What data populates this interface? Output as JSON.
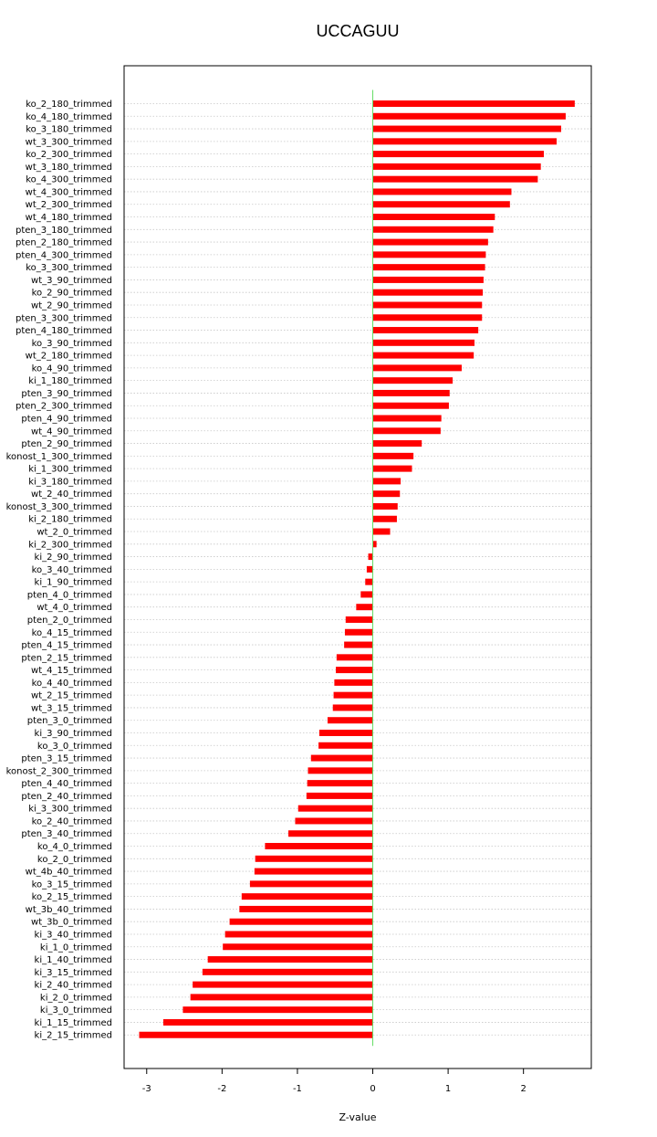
{
  "chart_data": {
    "type": "bar",
    "orientation": "horizontal",
    "title": "UCCAGUU",
    "xlabel": "Z-value",
    "ylabel": "",
    "xlim": [
      -3.3,
      2.9
    ],
    "xticks": [
      -3,
      -2,
      -1,
      0,
      1,
      2
    ],
    "grid": "horizontal dotted",
    "bar_color": "#ff0000",
    "zero_line_color": "#66dd66",
    "categories": [
      "ko_2_180_trimmed",
      "ko_4_180_trimmed",
      "ko_3_180_trimmed",
      "wt_3_300_trimmed",
      "ko_2_300_trimmed",
      "wt_3_180_trimmed",
      "ko_4_300_trimmed",
      "wt_4_300_trimmed",
      "wt_2_300_trimmed",
      "wt_4_180_trimmed",
      "pten_3_180_trimmed",
      "pten_2_180_trimmed",
      "pten_4_300_trimmed",
      "ko_3_300_trimmed",
      "wt_3_90_trimmed",
      "ko_2_90_trimmed",
      "wt_2_90_trimmed",
      "pten_3_300_trimmed",
      "pten_4_180_trimmed",
      "ko_3_90_trimmed",
      "wt_2_180_trimmed",
      "ko_4_90_trimmed",
      "ki_1_180_trimmed",
      "pten_3_90_trimmed",
      "pten_2_300_trimmed",
      "pten_4_90_trimmed",
      "wt_4_90_trimmed",
      "pten_2_90_trimmed",
      "konost_1_300_trimmed",
      "ki_1_300_trimmed",
      "ki_3_180_trimmed",
      "wt_2_40_trimmed",
      "konost_3_300_trimmed",
      "ki_2_180_trimmed",
      "wt_2_0_trimmed",
      "ki_2_300_trimmed",
      "ki_2_90_trimmed",
      "ko_3_40_trimmed",
      "ki_1_90_trimmed",
      "pten_4_0_trimmed",
      "wt_4_0_trimmed",
      "pten_2_0_trimmed",
      "ko_4_15_trimmed",
      "pten_4_15_trimmed",
      "pten_2_15_trimmed",
      "wt_4_15_trimmed",
      "ko_4_40_trimmed",
      "wt_2_15_trimmed",
      "wt_3_15_trimmed",
      "pten_3_0_trimmed",
      "ki_3_90_trimmed",
      "ko_3_0_trimmed",
      "pten_3_15_trimmed",
      "konost_2_300_trimmed",
      "pten_4_40_trimmed",
      "pten_2_40_trimmed",
      "ki_3_300_trimmed",
      "ko_2_40_trimmed",
      "pten_3_40_trimmed",
      "ko_4_0_trimmed",
      "ko_2_0_trimmed",
      "wt_4b_40_trimmed",
      "ko_3_15_trimmed",
      "ko_2_15_trimmed",
      "wt_3b_40_trimmed",
      "wt_3b_0_trimmed",
      "ki_3_40_trimmed",
      "ki_1_0_trimmed",
      "ki_1_40_trimmed",
      "ki_3_15_trimmed",
      "ki_2_40_trimmed",
      "ki_2_0_trimmed",
      "ki_3_0_trimmed",
      "ki_1_15_trimmed",
      "ki_2_15_trimmed"
    ],
    "values": [
      2.68,
      2.56,
      2.5,
      2.44,
      2.27,
      2.23,
      2.19,
      1.84,
      1.82,
      1.62,
      1.6,
      1.53,
      1.5,
      1.49,
      1.47,
      1.46,
      1.45,
      1.45,
      1.4,
      1.35,
      1.34,
      1.18,
      1.06,
      1.02,
      1.01,
      0.91,
      0.9,
      0.65,
      0.54,
      0.52,
      0.37,
      0.36,
      0.33,
      0.32,
      0.23,
      0.05,
      -0.06,
      -0.08,
      -0.1,
      -0.16,
      -0.22,
      -0.36,
      -0.37,
      -0.38,
      -0.48,
      -0.49,
      -0.51,
      -0.52,
      -0.53,
      -0.6,
      -0.71,
      -0.72,
      -0.82,
      -0.86,
      -0.87,
      -0.88,
      -0.99,
      -1.03,
      -1.12,
      -1.43,
      -1.56,
      -1.57,
      -1.63,
      -1.74,
      -1.77,
      -1.9,
      -1.96,
      -1.99,
      -2.19,
      -2.26,
      -2.39,
      -2.42,
      -2.52,
      -2.78,
      -3.1
    ]
  }
}
